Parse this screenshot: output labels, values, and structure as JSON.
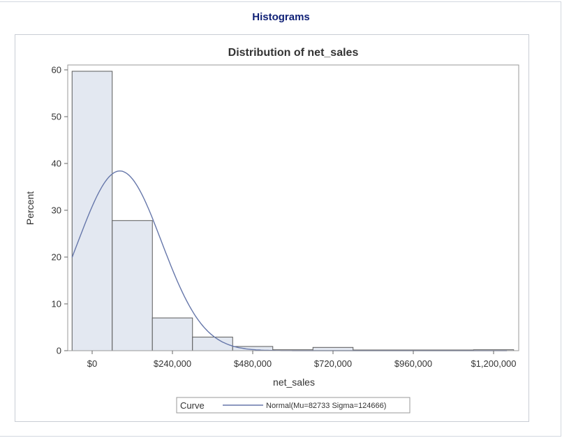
{
  "page": {
    "heading": "Histograms"
  },
  "chart_data": {
    "type": "bar",
    "title": "Distribution of net_sales",
    "xlabel": "net_sales",
    "ylabel": "Percent",
    "ylim": [
      0,
      60
    ],
    "xlim": [
      -50000,
      1260000
    ],
    "y_ticks": [
      0,
      10,
      20,
      30,
      40,
      50,
      60
    ],
    "x_ticks": [
      0,
      240000,
      480000,
      720000,
      960000,
      1200000
    ],
    "x_tick_labels": [
      "$0",
      "$240,000",
      "$480,000",
      "$720,000",
      "$960,000",
      "$1,200,000"
    ],
    "bin_width": 120000,
    "bins": [
      {
        "start": -60000,
        "end": 60000,
        "value": 59.7
      },
      {
        "start": 60000,
        "end": 180000,
        "value": 27.8
      },
      {
        "start": 180000,
        "end": 300000,
        "value": 7.0
      },
      {
        "start": 300000,
        "end": 420000,
        "value": 2.9
      },
      {
        "start": 420000,
        "end": 540000,
        "value": 0.9
      },
      {
        "start": 540000,
        "end": 660000,
        "value": 0.2
      },
      {
        "start": 660000,
        "end": 780000,
        "value": 0.7
      },
      {
        "start": 780000,
        "end": 900000,
        "value": 0.0
      },
      {
        "start": 900000,
        "end": 1020000,
        "value": 0.0
      },
      {
        "start": 1020000,
        "end": 1140000,
        "value": 0.0
      },
      {
        "start": 1140000,
        "end": 1260000,
        "value": 0.2
      }
    ],
    "curve": {
      "type": "normal",
      "mu": 82733,
      "sigma": 124666,
      "label": "Normal(Mu=82733 Sigma=124666)"
    },
    "legend": {
      "title": "Curve",
      "position": "bottom"
    },
    "grid": false,
    "colors": {
      "bar_fill": "#e3e8f1",
      "bar_stroke": "#5a5a5a",
      "curve": "#6677aa",
      "heading": "#112277"
    }
  }
}
